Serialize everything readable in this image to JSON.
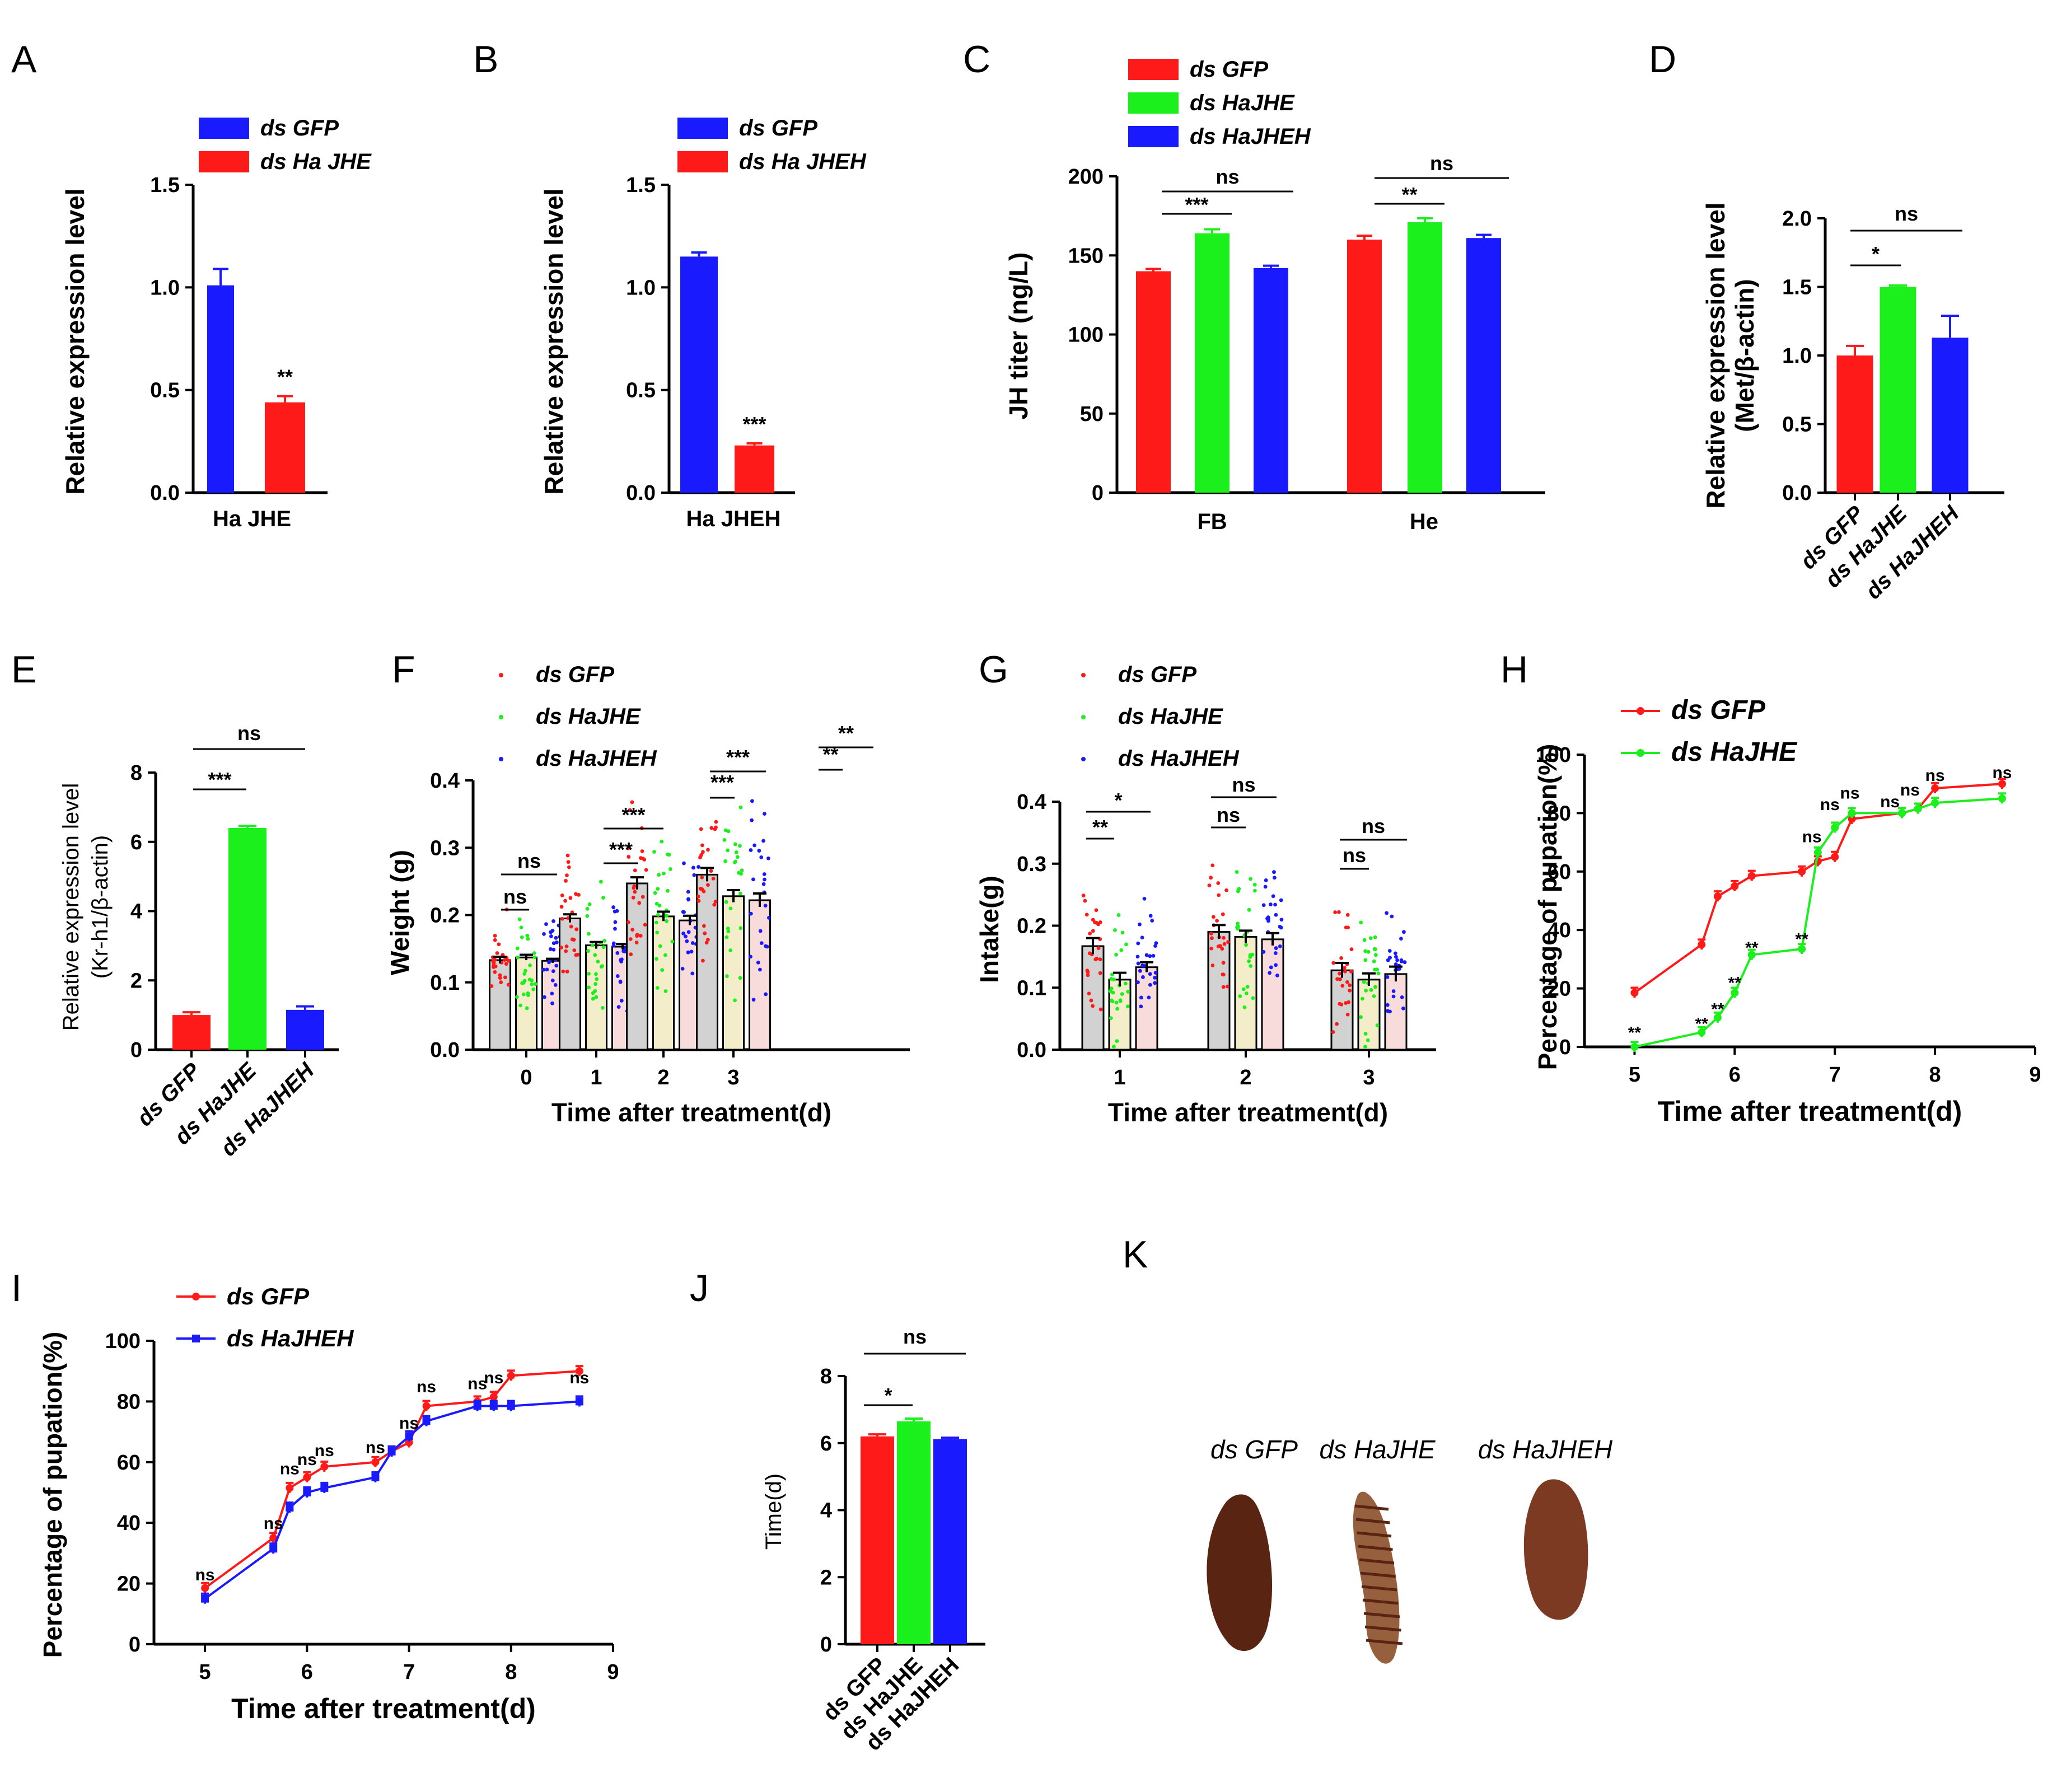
{
  "colors": {
    "red": "#ff1a1a",
    "green": "#1cf01c",
    "blue": "#1a1aff",
    "grey_bar": "#d2d2d2",
    "yellow_bar": "#f3eec9",
    "pink_bar": "#f8dcdc",
    "axis": "#000000",
    "larva_dark": "#5a2412",
    "larva_mid": "#7d3a22",
    "larva_light": "#96603f"
  },
  "chart_data": [
    {
      "panel": "A",
      "type": "bar",
      "categories": [
        "Ha JHE"
      ],
      "series": [
        {
          "name": "ds GFP",
          "values": [
            1.01
          ],
          "errors": [
            0.08
          ],
          "color": "blue"
        },
        {
          "name": "ds Ha JHE",
          "values": [
            0.44
          ],
          "errors": [
            0.03
          ],
          "color": "red"
        }
      ],
      "ylabel": "Relative expression level",
      "ylim": [
        0,
        1.5
      ],
      "yticks": [
        0.0,
        0.5,
        1.0,
        1.5
      ],
      "ytick_labels": [
        "0.0",
        "0.5",
        "1.0",
        "1.5"
      ],
      "xlabel": "Ha JHE",
      "annotations": [
        "**"
      ]
    },
    {
      "panel": "B",
      "type": "bar",
      "categories": [
        "Ha JHEH"
      ],
      "series": [
        {
          "name": "ds GFP",
          "values": [
            1.15
          ],
          "errors": [
            0.02
          ],
          "color": "blue"
        },
        {
          "name": "ds Ha JHEH",
          "values": [
            0.23
          ],
          "errors": [
            0.01
          ],
          "color": "red"
        }
      ],
      "ylabel": "Relative expression level",
      "ylim": [
        0,
        1.5
      ],
      "yticks": [
        0.0,
        0.5,
        1.0,
        1.5
      ],
      "ytick_labels": [
        "0.0",
        "0.5",
        "1.0",
        "1.5"
      ],
      "xlabel": "Ha JHEH",
      "annotations": [
        "***"
      ]
    },
    {
      "panel": "C",
      "type": "bar",
      "categories": [
        "FB",
        "He"
      ],
      "series": [
        {
          "name": "ds GFP",
          "values": [
            140,
            160
          ],
          "errors": [
            1.5,
            2.5
          ],
          "color": "red"
        },
        {
          "name": "ds HaJHE",
          "values": [
            164,
            171
          ],
          "errors": [
            2.5,
            2.5
          ],
          "color": "green"
        },
        {
          "name": "ds HaJHEH",
          "values": [
            142,
            161
          ],
          "errors": [
            1.5,
            2
          ],
          "color": "blue"
        }
      ],
      "ylabel": "JH titer (ng/L)",
      "ylim": [
        0,
        200
      ],
      "yticks": [
        0,
        50,
        100,
        150,
        200
      ],
      "ytick_labels": [
        "0",
        "50",
        "100",
        "150",
        "200"
      ],
      "annotations": [
        "***",
        "ns",
        "**",
        "ns"
      ]
    },
    {
      "panel": "D",
      "type": "bar",
      "categories": [
        "ds GFP",
        "ds HaJHE",
        "ds HaJHEH"
      ],
      "values": [
        1.0,
        1.5,
        1.13
      ],
      "errors": [
        0.07,
        0.01,
        0.16
      ],
      "colors": [
        "red",
        "green",
        "blue"
      ],
      "ylabel": "Relative expression level\n(Met/β-actin)",
      "ylim": [
        0,
        2.0
      ],
      "yticks": [
        0.0,
        0.5,
        1.0,
        1.5,
        2.0
      ],
      "ytick_labels": [
        "0.0",
        "0.5",
        "1.0",
        "1.5",
        "2.0"
      ],
      "annotations": [
        "*",
        "ns"
      ]
    },
    {
      "panel": "E",
      "type": "bar",
      "categories": [
        "ds GFP",
        "ds HaJHE",
        "ds HaJHEH"
      ],
      "values": [
        1.0,
        6.4,
        1.15
      ],
      "errors": [
        0.08,
        0.06,
        0.1
      ],
      "colors": [
        "red",
        "green",
        "blue"
      ],
      "ylabel": "Relative expression level\n(Kr-h1/β-actin)",
      "ylim": [
        0,
        8
      ],
      "yticks": [
        0,
        2,
        4,
        6,
        8
      ],
      "ytick_labels": [
        "0",
        "2",
        "4",
        "6",
        "8"
      ],
      "annotations": [
        "***",
        "ns"
      ]
    },
    {
      "panel": "F",
      "type": "bar",
      "categories": [
        "0",
        "1",
        "2",
        "3"
      ],
      "series": [
        {
          "name": "ds GFP",
          "values": [
            0.133,
            0.195,
            0.247,
            0.26
          ],
          "errors": [
            0.005,
            0.006,
            0.009,
            0.01
          ],
          "color": "red"
        },
        {
          "name": "ds HaJHE",
          "values": [
            0.137,
            0.155,
            0.198,
            0.228
          ],
          "errors": [
            0.004,
            0.005,
            0.007,
            0.009
          ],
          "color": "green"
        },
        {
          "name": "ds HaJHEH",
          "values": [
            0.132,
            0.153,
            0.192,
            0.222
          ],
          "errors": [
            0.003,
            0.004,
            0.007,
            0.01
          ],
          "color": "blue"
        }
      ],
      "xlabel": "Time after treatment(d)",
      "ylabel": "Weight (g)",
      "ylim": [
        0,
        0.4
      ],
      "yticks": [
        0.0,
        0.1,
        0.2,
        0.3,
        0.4
      ],
      "ytick_labels": [
        "0.0",
        "0.1",
        "0.2",
        "0.3",
        "0.4"
      ],
      "annotations": [
        "ns",
        "ns",
        "***",
        "***",
        "***",
        "***",
        "**",
        "**"
      ]
    },
    {
      "panel": "G",
      "type": "bar",
      "categories": [
        "1",
        "2",
        "3"
      ],
      "series": [
        {
          "name": "ds GFP",
          "values": [
            0.167,
            0.19,
            0.128
          ],
          "errors": [
            0.013,
            0.011,
            0.012
          ],
          "color": "red"
        },
        {
          "name": "ds HaJHE",
          "values": [
            0.113,
            0.182,
            0.113
          ],
          "errors": [
            0.011,
            0.01,
            0.01
          ],
          "color": "green"
        },
        {
          "name": "ds HaJHEH",
          "values": [
            0.133,
            0.178,
            0.122
          ],
          "errors": [
            0.008,
            0.01,
            0.012
          ],
          "color": "blue"
        }
      ],
      "xlabel": "Time after treatment(d)",
      "ylabel": "Intake(g)",
      "ylim": [
        0,
        0.4
      ],
      "yticks": [
        0.0,
        0.1,
        0.2,
        0.3,
        0.4
      ],
      "ytick_labels": [
        "0.0",
        "0.1",
        "0.2",
        "0.3",
        "0.4"
      ],
      "annotations": [
        "**",
        "*",
        "ns",
        "ns",
        "ns",
        "ns"
      ]
    },
    {
      "panel": "H",
      "type": "line",
      "series": [
        {
          "name": "ds GFP",
          "color": "red",
          "x": [
            5,
            5.67,
            5.83,
            6,
            6.17,
            6.67,
            6.83,
            7,
            7.17,
            7.67,
            7.83,
            8,
            8.67
          ],
          "y": [
            18.5,
            35,
            51.5,
            55,
            58.5,
            60,
            63.5,
            65,
            78,
            80,
            81.5,
            88.5,
            90
          ]
        },
        {
          "name": "ds HaJHE",
          "color": "green",
          "x": [
            5,
            5.67,
            5.83,
            6,
            6.17,
            6.67,
            6.83,
            7,
            7.17,
            7.67,
            7.83,
            8,
            8.67
          ],
          "y": [
            0,
            5,
            10,
            18.5,
            31.5,
            33.5,
            66.5,
            75,
            80,
            80,
            81.5,
            83.5,
            85
          ]
        }
      ],
      "xlabel": "Time after treatment(d)",
      "ylabel": "Percentage of pupation(%)",
      "xlim": [
        4.5,
        9
      ],
      "ylim": [
        0,
        100
      ],
      "xticks": [
        5,
        6,
        7,
        8,
        9
      ],
      "xtick_labels": [
        "5",
        "6",
        "7",
        "8",
        "9"
      ],
      "yticks": [
        0,
        20,
        40,
        60,
        80,
        100
      ],
      "ytick_labels": [
        "0",
        "20",
        "40",
        "60",
        "80",
        "100"
      ],
      "annotations": [
        "**",
        "**",
        "**",
        "**",
        "**",
        "**",
        "ns",
        "ns",
        "ns",
        "ns",
        "ns",
        "ns",
        "ns"
      ]
    },
    {
      "panel": "I",
      "type": "line",
      "series": [
        {
          "name": "ds GFP",
          "color": "red",
          "x": [
            5,
            5.67,
            5.83,
            6,
            6.17,
            6.67,
            6.83,
            7,
            7.17,
            7.67,
            7.83,
            8,
            8.67
          ],
          "y": [
            18.5,
            35,
            51.5,
            55,
            58.5,
            60,
            63.5,
            66.5,
            78.5,
            80,
            81.5,
            88.5,
            90
          ]
        },
        {
          "name": "ds HaJHEH",
          "color": "blue",
          "x": [
            5,
            5.67,
            5.83,
            6,
            6.17,
            6.67,
            6.83,
            7,
            7.17,
            7.67,
            7.83,
            8,
            8.67
          ],
          "y": [
            15,
            31.5,
            45,
            50,
            51.5,
            55,
            63.5,
            68.5,
            73.5,
            78.5,
            78.5,
            78.5,
            80
          ]
        }
      ],
      "xlabel": "Time after treatment(d)",
      "ylabel": "Percentage of pupation(%)",
      "xlim": [
        4.5,
        9
      ],
      "ylim": [
        0,
        100
      ],
      "xticks": [
        5,
        6,
        7,
        8,
        9
      ],
      "xtick_labels": [
        "5",
        "6",
        "7",
        "8",
        "9"
      ],
      "yticks": [
        0,
        20,
        40,
        60,
        80,
        100
      ],
      "ytick_labels": [
        "0",
        "20",
        "40",
        "60",
        "80",
        "100"
      ],
      "annotations": [
        "ns",
        "ns",
        "ns",
        "ns",
        "ns",
        "ns",
        "ns",
        "ns",
        "ns",
        "ns",
        "ns"
      ]
    },
    {
      "panel": "J",
      "type": "bar",
      "categories": [
        "ds GFP",
        "ds HaJHE",
        "ds HaJHEH"
      ],
      "values": [
        6.2,
        6.65,
        6.12
      ],
      "errors": [
        0.06,
        0.08,
        0.04
      ],
      "colors": [
        "red",
        "green",
        "blue"
      ],
      "ylabel": "Time(d)",
      "ylim": [
        0,
        8
      ],
      "yticks": [
        0,
        2,
        4,
        6,
        8
      ],
      "ytick_labels": [
        "0",
        "2",
        "4",
        "6",
        "8"
      ],
      "annotations": [
        "*",
        "ns"
      ]
    }
  ],
  "photo_panel": {
    "panel": "K",
    "labels": [
      "ds GFP",
      "ds HaJHE",
      "ds HaJHEH"
    ]
  }
}
